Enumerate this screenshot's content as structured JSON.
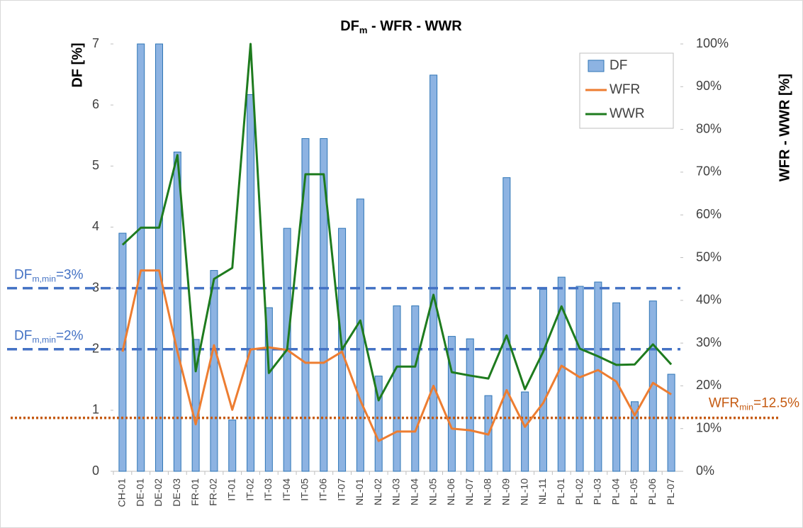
{
  "chart_data": {
    "type": "bar-line",
    "title": [
      {
        "text": "DF"
      },
      {
        "text": "m",
        "sub": true
      },
      {
        "text": " - WFR - WWR"
      }
    ],
    "y_label": "DF  [%]",
    "y2_label": "WFR - WWR [%]",
    "categories": [
      "CH-01",
      "DE-01",
      "DE-02",
      "DE-03",
      "FR-01",
      "FR-02",
      "IT-01",
      "IT-02",
      "IT-03",
      "IT-04",
      "IT-05",
      "IT-06",
      "IT-07",
      "NL-01",
      "NL-02",
      "NL-03",
      "NL-04",
      "NL-05",
      "NL-06",
      "NL-07",
      "NL-08",
      "NL-09",
      "NL-10",
      "NL-11",
      "PL-01",
      "PL-02",
      "PL-03",
      "PL-04",
      "PL-05",
      "PL-06",
      "PL-07"
    ],
    "series": [
      {
        "name": "DF",
        "type": "bar",
        "color": "#8db3e2",
        "values": [
          3.9,
          7,
          7,
          5.23,
          2.16,
          3.29,
          0.84,
          6.17,
          2.68,
          3.98,
          5.45,
          5.45,
          3.98,
          4.46,
          1.56,
          2.71,
          2.71,
          6.49,
          2.21,
          2.17,
          1.24,
          4.81,
          1.3,
          2.98,
          3.18,
          3.03,
          3.1,
          2.76,
          1.14,
          2.79,
          1.59
        ]
      },
      {
        "name": "WFR",
        "type": "line",
        "axis": "y2",
        "color": "#ed7d31",
        "values": [
          28,
          47,
          47,
          28,
          11,
          29.5,
          14.4,
          28.5,
          29,
          28.4,
          25.4,
          25.4,
          28,
          16.6,
          7.1,
          9.3,
          9.3,
          20,
          10,
          9.6,
          8.6,
          19,
          10.4,
          16,
          24.7,
          22,
          23.7,
          21,
          13.1,
          20.7,
          18
        ]
      },
      {
        "name": "WWR",
        "type": "line",
        "axis": "y2",
        "color": "#1e7b1e",
        "values": [
          53,
          57,
          57,
          74,
          23.4,
          45,
          47.6,
          100,
          23,
          28.5,
          69.5,
          69.5,
          28.5,
          35.3,
          16.6,
          24.5,
          24.5,
          41.3,
          23.2,
          22.4,
          21.7,
          31.8,
          19.2,
          28,
          38.6,
          28.7,
          26.9,
          24.9,
          25,
          29.7,
          25
        ]
      }
    ],
    "ylim": [
      0,
      7
    ],
    "yticks": [
      0,
      1,
      2,
      3,
      4,
      5,
      6,
      7
    ],
    "y2lim": [
      0,
      100
    ],
    "y2ticks": [
      {
        "value": 0,
        "label": "0%"
      },
      {
        "value": 10,
        "label": "10%"
      },
      {
        "value": 20,
        "label": "20%"
      },
      {
        "value": 30,
        "label": "30%"
      },
      {
        "value": 40,
        "label": "40%"
      },
      {
        "value": 50,
        "label": "50%"
      },
      {
        "value": 60,
        "label": "60%"
      },
      {
        "value": 70,
        "label": "70%"
      },
      {
        "value": 80,
        "label": "80%"
      },
      {
        "value": 90,
        "label": "90%"
      },
      {
        "value": 100,
        "label": "100%"
      }
    ],
    "reference_lines": [
      {
        "value": 3,
        "axis": "y",
        "color": "#4472c4",
        "dash": "dashed",
        "label": [
          {
            "text": "DF"
          },
          {
            "text": "m,min",
            "sub": true
          },
          {
            "text": "=3%"
          }
        ]
      },
      {
        "value": 2,
        "axis": "y",
        "color": "#4472c4",
        "dash": "dashed",
        "label": [
          {
            "text": "DF"
          },
          {
            "text": "m,min",
            "sub": true
          },
          {
            "text": "=2%"
          }
        ]
      },
      {
        "value": 12.5,
        "axis": "y2",
        "color": "#c55a11",
        "dash": "dotted",
        "label": [
          {
            "text": "WFR"
          },
          {
            "text": "min",
            "sub": true
          },
          {
            "text": "=12.5%"
          }
        ]
      }
    ],
    "legend": "top-right"
  }
}
